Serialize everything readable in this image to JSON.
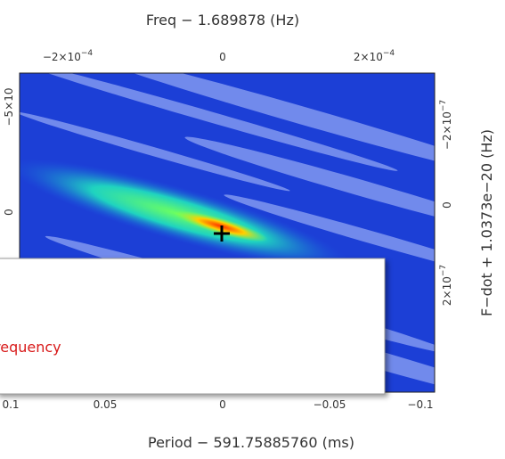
{
  "top_axis": {
    "label": "Freq − 1.689878 (Hz)",
    "ticks": [
      {
        "base": "−2×10",
        "exp": "−4"
      },
      {
        "base": "0",
        "exp": ""
      },
      {
        "base": "2×10",
        "exp": "−4"
      }
    ]
  },
  "left_axis": {
    "ticks": [
      {
        "base": "0",
        "exp": ""
      },
      {
        "base": "−5×10",
        "exp": ""
      }
    ]
  },
  "right_axis": {
    "label": "F−dot + 1.0373e−20 (Hz)",
    "ticks": [
      {
        "base": "2×10",
        "exp": "−7"
      },
      {
        "base": "0",
        "exp": ""
      },
      {
        "base": "−2×10",
        "exp": "−7"
      }
    ]
  },
  "bottom_axis": {
    "label": "Period − 591.75885760 (ms)",
    "ticks": [
      "0.1",
      "0.05",
      "0",
      "−0.05",
      "−0.1"
    ]
  },
  "overlay": {
    "text": "requency"
  }
}
